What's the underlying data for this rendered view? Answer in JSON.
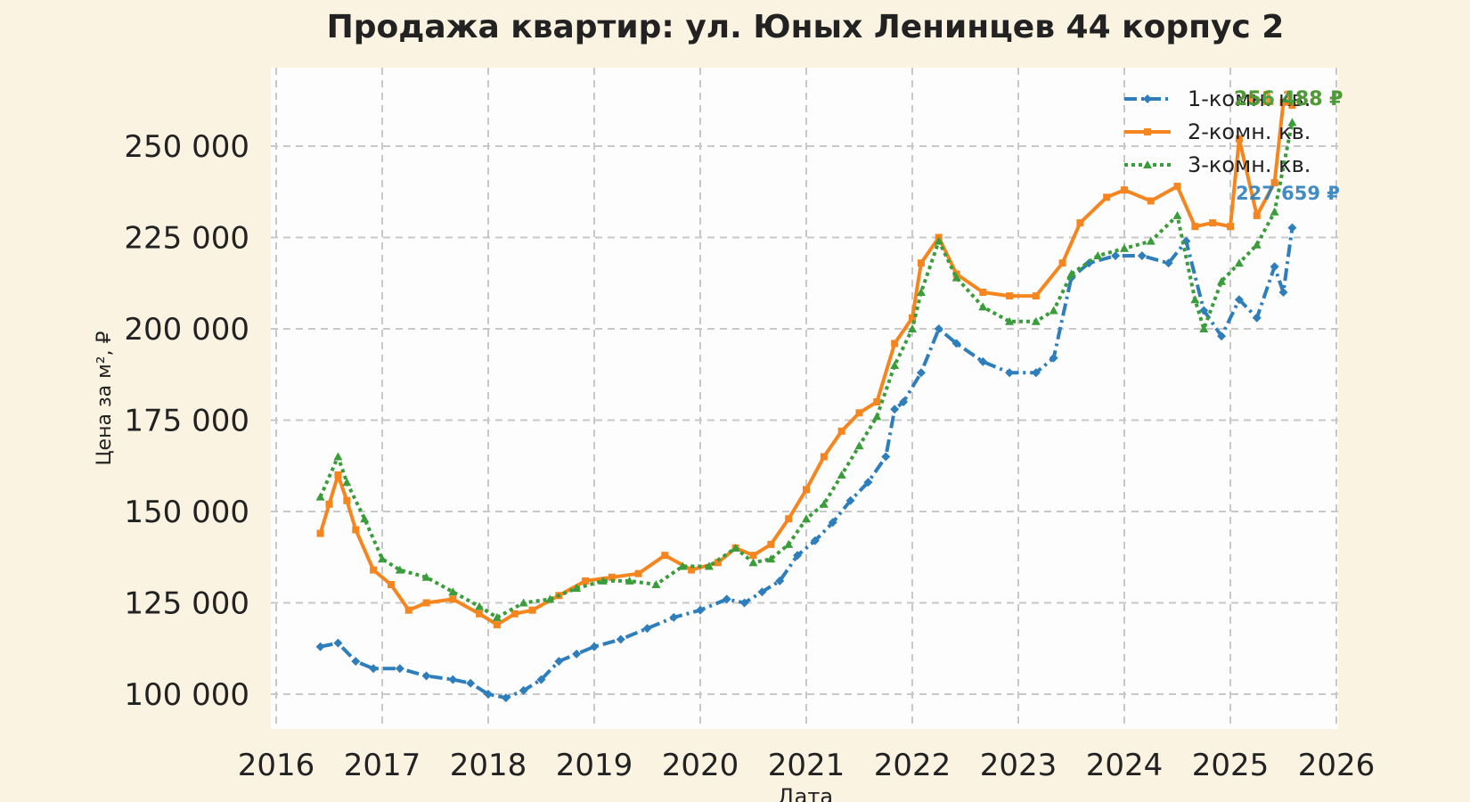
{
  "chart_data": {
    "type": "line",
    "title": "Продажа квартир: ул. Юных Ленинцев 44 корпус 2",
    "xlabel": "Дата",
    "ylabel": "Цена за м², ₽",
    "xlim": [
      2016,
      2026
    ],
    "ylim": [
      90000,
      270000
    ],
    "x_ticks": [
      "2016",
      "2017",
      "2018",
      "2019",
      "2020",
      "2021",
      "2022",
      "2023",
      "2024",
      "2025",
      "2026"
    ],
    "y_ticks": [
      "100 000",
      "125 000",
      "150 000",
      "175 000",
      "200 000",
      "225 000",
      "250 000"
    ],
    "grid": true,
    "legend_position": "top-right",
    "series": [
      {
        "name": "1-комн. кв.",
        "color": "#2f7ebc",
        "marker": "diamond",
        "dash": "dashdot",
        "end_label": "227 659 ₽",
        "points": [
          [
            "2016-06",
            113000
          ],
          [
            "2016-08",
            114000
          ],
          [
            "2016-10",
            109000
          ],
          [
            "2016-12",
            107000
          ],
          [
            "2017-03",
            107000
          ],
          [
            "2017-06",
            105000
          ],
          [
            "2017-09",
            104000
          ],
          [
            "2017-11",
            103000
          ],
          [
            "2018-01",
            100000
          ],
          [
            "2018-03",
            99000
          ],
          [
            "2018-05",
            101000
          ],
          [
            "2018-07",
            104000
          ],
          [
            "2018-09",
            109000
          ],
          [
            "2018-11",
            111000
          ],
          [
            "2019-01",
            113000
          ],
          [
            "2019-04",
            115000
          ],
          [
            "2019-07",
            118000
          ],
          [
            "2019-10",
            121000
          ],
          [
            "2020-01",
            123000
          ],
          [
            "2020-04",
            126000
          ],
          [
            "2020-06",
            125000
          ],
          [
            "2020-08",
            128000
          ],
          [
            "2020-10",
            131000
          ],
          [
            "2020-12",
            138000
          ],
          [
            "2021-02",
            142000
          ],
          [
            "2021-04",
            147000
          ],
          [
            "2021-06",
            153000
          ],
          [
            "2021-08",
            158000
          ],
          [
            "2021-10",
            165000
          ],
          [
            "2021-11",
            178000
          ],
          [
            "2021-12",
            180000
          ],
          [
            "2022-02",
            188000
          ],
          [
            "2022-04",
            200000
          ],
          [
            "2022-06",
            196000
          ],
          [
            "2022-09",
            191000
          ],
          [
            "2022-12",
            188000
          ],
          [
            "2023-03",
            188000
          ],
          [
            "2023-05",
            192000
          ],
          [
            "2023-07",
            214000
          ],
          [
            "2023-09",
            218000
          ],
          [
            "2023-12",
            220000
          ],
          [
            "2024-03",
            220000
          ],
          [
            "2024-06",
            218000
          ],
          [
            "2024-08",
            224000
          ],
          [
            "2024-10",
            205000
          ],
          [
            "2024-12",
            198000
          ],
          [
            "2025-02",
            208000
          ],
          [
            "2025-04",
            203000
          ],
          [
            "2025-06",
            217000
          ],
          [
            "2025-07",
            210000
          ],
          [
            "2025-08",
            227659
          ]
        ]
      },
      {
        "name": "2-комн. кв.",
        "color": "#f5861f",
        "marker": "square",
        "dash": "solid",
        "end_label": "261 188 ₽",
        "points": [
          [
            "2016-06",
            144000
          ],
          [
            "2016-07",
            152000
          ],
          [
            "2016-08",
            160000
          ],
          [
            "2016-09",
            153000
          ],
          [
            "2016-10",
            145000
          ],
          [
            "2016-12",
            134000
          ],
          [
            "2017-02",
            130000
          ],
          [
            "2017-04",
            123000
          ],
          [
            "2017-06",
            125000
          ],
          [
            "2017-09",
            126000
          ],
          [
            "2017-12",
            122000
          ],
          [
            "2018-02",
            119000
          ],
          [
            "2018-04",
            122000
          ],
          [
            "2018-06",
            123000
          ],
          [
            "2018-09",
            127000
          ],
          [
            "2018-12",
            131000
          ],
          [
            "2019-03",
            132000
          ],
          [
            "2019-06",
            133000
          ],
          [
            "2019-09",
            138000
          ],
          [
            "2019-12",
            134000
          ],
          [
            "2020-03",
            136000
          ],
          [
            "2020-05",
            140000
          ],
          [
            "2020-07",
            138000
          ],
          [
            "2020-09",
            141000
          ],
          [
            "2020-11",
            148000
          ],
          [
            "2021-01",
            156000
          ],
          [
            "2021-03",
            165000
          ],
          [
            "2021-05",
            172000
          ],
          [
            "2021-07",
            177000
          ],
          [
            "2021-09",
            180000
          ],
          [
            "2021-11",
            196000
          ],
          [
            "2022-01",
            203000
          ],
          [
            "2022-02",
            218000
          ],
          [
            "2022-04",
            225000
          ],
          [
            "2022-06",
            215000
          ],
          [
            "2022-09",
            210000
          ],
          [
            "2022-12",
            209000
          ],
          [
            "2023-03",
            209000
          ],
          [
            "2023-06",
            218000
          ],
          [
            "2023-08",
            229000
          ],
          [
            "2023-11",
            236000
          ],
          [
            "2024-01",
            238000
          ],
          [
            "2024-04",
            235000
          ],
          [
            "2024-07",
            239000
          ],
          [
            "2024-09",
            228000
          ],
          [
            "2024-11",
            229000
          ],
          [
            "2025-01",
            228000
          ],
          [
            "2025-02",
            252000
          ],
          [
            "2025-04",
            231000
          ],
          [
            "2025-06",
            240000
          ],
          [
            "2025-07",
            262000
          ],
          [
            "2025-08",
            261188
          ]
        ]
      },
      {
        "name": "3-комн. кв.",
        "color": "#3a9c3a",
        "marker": "triangle",
        "dash": "dotted",
        "end_label": "256 488 ₽",
        "points": [
          [
            "2016-06",
            154000
          ],
          [
            "2016-08",
            165000
          ],
          [
            "2016-09",
            158000
          ],
          [
            "2016-11",
            148000
          ],
          [
            "2017-01",
            137000
          ],
          [
            "2017-03",
            134000
          ],
          [
            "2017-06",
            132000
          ],
          [
            "2017-09",
            128000
          ],
          [
            "2017-12",
            124000
          ],
          [
            "2018-02",
            121000
          ],
          [
            "2018-05",
            125000
          ],
          [
            "2018-08",
            126000
          ],
          [
            "2018-11",
            129000
          ],
          [
            "2019-02",
            131000
          ],
          [
            "2019-05",
            131000
          ],
          [
            "2019-08",
            130000
          ],
          [
            "2019-11",
            135000
          ],
          [
            "2020-02",
            135000
          ],
          [
            "2020-05",
            140000
          ],
          [
            "2020-07",
            136000
          ],
          [
            "2020-09",
            137000
          ],
          [
            "2020-11",
            141000
          ],
          [
            "2021-01",
            148000
          ],
          [
            "2021-03",
            152000
          ],
          [
            "2021-05",
            160000
          ],
          [
            "2021-07",
            168000
          ],
          [
            "2021-09",
            176000
          ],
          [
            "2021-11",
            190000
          ],
          [
            "2022-01",
            200000
          ],
          [
            "2022-02",
            210000
          ],
          [
            "2022-04",
            224000
          ],
          [
            "2022-06",
            214000
          ],
          [
            "2022-09",
            206000
          ],
          [
            "2022-12",
            202000
          ],
          [
            "2023-03",
            202000
          ],
          [
            "2023-05",
            205000
          ],
          [
            "2023-07",
            215000
          ],
          [
            "2023-10",
            220000
          ],
          [
            "2024-01",
            222000
          ],
          [
            "2024-04",
            224000
          ],
          [
            "2024-07",
            231000
          ],
          [
            "2024-09",
            208000
          ],
          [
            "2024-10",
            200000
          ],
          [
            "2024-12",
            213000
          ],
          [
            "2025-02",
            218000
          ],
          [
            "2025-04",
            223000
          ],
          [
            "2025-06",
            232000
          ],
          [
            "2025-08",
            256488
          ]
        ]
      }
    ]
  }
}
